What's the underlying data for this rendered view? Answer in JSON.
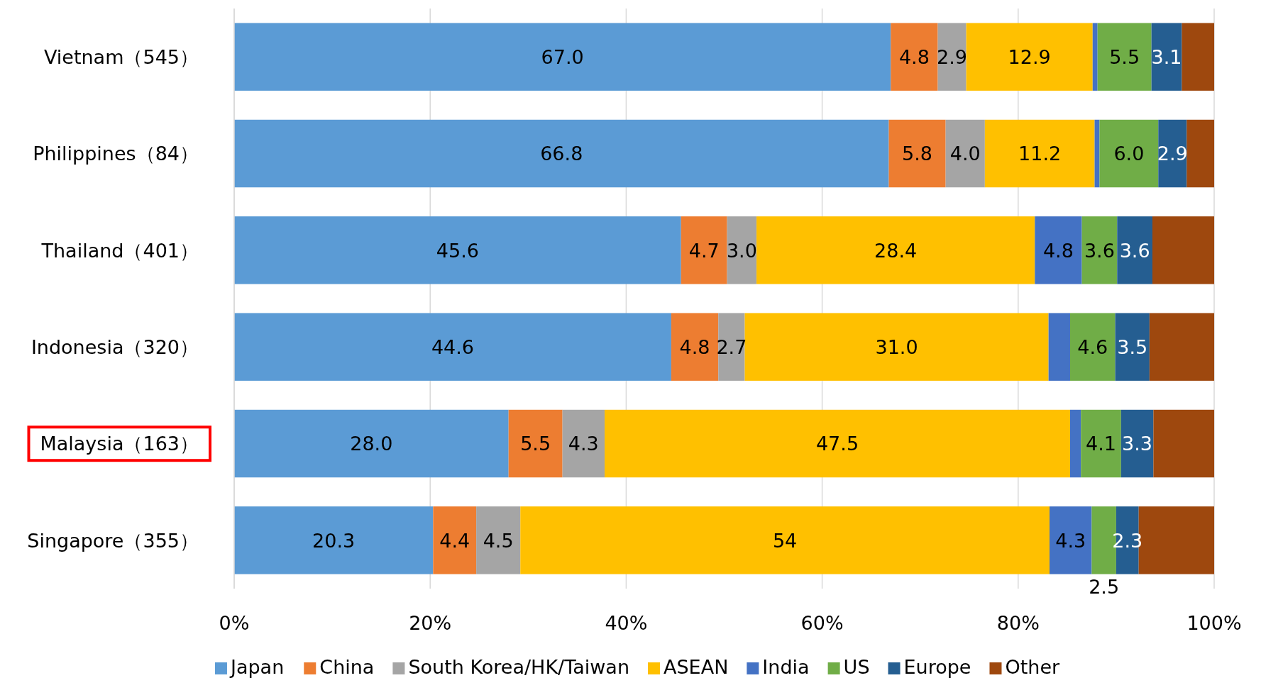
{
  "chart_data": {
    "type": "bar",
    "orientation": "horizontal",
    "stacked": true,
    "categories": [
      "Vietnam（545）",
      "Philippines（84）",
      "Thailand（401）",
      "Indonesia（320）",
      "Malaysia（163）",
      "Singapore（355）"
    ],
    "series": [
      {
        "name": "Japan",
        "color": "#5b9bd5",
        "values": [
          67.0,
          66.8,
          45.6,
          44.6,
          28.0,
          20.3
        ],
        "value_labels": [
          "67.0",
          "66.8",
          "45.6",
          "44.6",
          "28.0",
          "20.3"
        ]
      },
      {
        "name": "China",
        "color": "#ed7d31",
        "values": [
          4.8,
          5.8,
          4.7,
          4.8,
          5.5,
          4.4
        ],
        "value_labels": [
          "4.8",
          "5.8",
          "4.7",
          "4.8",
          "5.5",
          "4.4"
        ]
      },
      {
        "name": "South Korea/HK/Taiwan",
        "color": "#a5a5a5",
        "values": [
          2.9,
          4.0,
          3.0,
          2.7,
          4.3,
          4.5
        ],
        "value_labels": [
          "2.9",
          "4.0",
          "3.0",
          "2.7",
          "4.3",
          "4.5"
        ]
      },
      {
        "name": "ASEAN",
        "color": "#ffc000",
        "values": [
          12.9,
          11.2,
          28.4,
          31.0,
          47.5,
          54
        ],
        "value_labels": [
          "12.9",
          "11.2",
          "28.4",
          "31.0",
          "47.5",
          "54"
        ]
      },
      {
        "name": "India",
        "color": "#4472c4",
        "values": [
          0.5,
          0.5,
          4.8,
          2.2,
          1.1,
          4.3
        ],
        "value_labels": [
          null,
          null,
          "4.8",
          null,
          null,
          "4.3"
        ]
      },
      {
        "name": "US",
        "color": "#70ad47",
        "values": [
          5.5,
          6.0,
          3.6,
          4.6,
          4.1,
          2.5
        ],
        "value_labels": [
          "5.5",
          "6.0",
          "3.6",
          "4.6",
          "4.1",
          "2.5"
        ]
      },
      {
        "name": "Europe",
        "color": "#255e91",
        "values": [
          3.1,
          2.9,
          3.6,
          3.5,
          3.3,
          2.3
        ],
        "value_labels": [
          "3.1",
          "2.9",
          "3.6",
          "3.5",
          "3.3",
          "2.3"
        ]
      },
      {
        "name": "Other",
        "color": "#9e480e",
        "values": [
          3.3,
          2.8,
          6.3,
          6.6,
          6.2,
          7.7
        ],
        "value_labels": [
          null,
          null,
          null,
          null,
          null,
          null
        ]
      }
    ],
    "xlim": [
      0,
      100
    ],
    "xticks": [
      {
        "value": 0,
        "label": "0%"
      },
      {
        "value": 20,
        "label": "20%"
      },
      {
        "value": 40,
        "label": "40%"
      },
      {
        "value": 60,
        "label": "60%"
      },
      {
        "value": 80,
        "label": "80%"
      },
      {
        "value": 100,
        "label": "100%"
      }
    ],
    "grid": "x",
    "legend": "bottom"
  }
}
